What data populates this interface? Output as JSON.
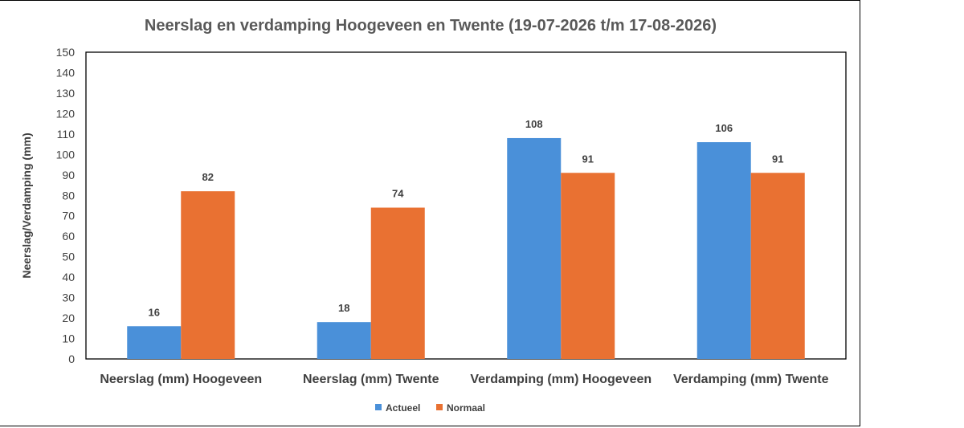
{
  "chart_data": {
    "type": "bar",
    "title": "Neerslag en verdamping Hoogeveen en Twente (19-07-2026 t/m 17-08-2026)",
    "xlabel": "",
    "ylabel": "Neerslag/Verdamping (mm)",
    "ylim": [
      0,
      150
    ],
    "yticks": [
      0,
      10,
      20,
      30,
      40,
      50,
      60,
      70,
      80,
      90,
      100,
      110,
      120,
      130,
      140,
      150
    ],
    "categories": [
      "Neerslag (mm) Hoogeveen",
      "Neerslag (mm) Twente",
      "Verdamping (mm) Hoogeveen",
      "Verdamping (mm) Twente"
    ],
    "series": [
      {
        "name": "Actueel",
        "values": [
          16,
          18,
          108,
          106
        ],
        "color": "#4A90D9"
      },
      {
        "name": "Normaal",
        "values": [
          82,
          74,
          91,
          91
        ],
        "color": "#E97132"
      }
    ],
    "grid": false,
    "legend_position": "bottom"
  }
}
